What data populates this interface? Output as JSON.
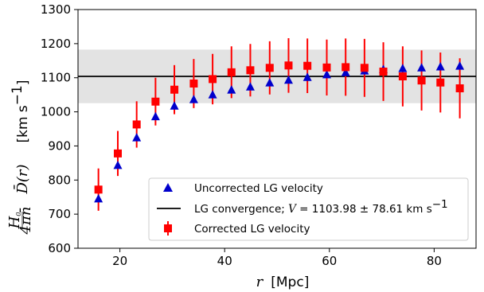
{
  "chart_data": {
    "type": "scatter",
    "title": "",
    "xlabel": "Mpc",
    "xlabel_var": "r",
    "ylabel": "H0/(4πn̄) D̄(r) [km s⁻¹]",
    "ylabel_unit": "[km s",
    "ylabel_unit_exp": "−1",
    "ylabel_unit_close": "]",
    "xlim": [
      12,
      88
    ],
    "ylim": [
      600,
      1300
    ],
    "xticks": [
      20,
      40,
      60,
      80
    ],
    "yticks": [
      600,
      700,
      800,
      900,
      1000,
      1100,
      1200,
      1300
    ],
    "grid": false,
    "legend_position": "lower-right",
    "band": {
      "center": 1103.98,
      "half_width": 78.61,
      "color": "#e3e3e3"
    },
    "series": [
      {
        "name": "Uncorrected LG velocity",
        "marker": "triangle",
        "color": "#0000cc",
        "x": [
          15.9,
          19.6,
          23.2,
          26.8,
          30.4,
          34.1,
          37.7,
          41.3,
          44.9,
          48.6,
          52.2,
          55.8,
          59.5,
          63.1,
          66.7,
          70.3,
          74.0,
          77.6,
          81.2,
          84.9
        ],
        "y": [
          745,
          843,
          924,
          986,
          1017,
          1036,
          1050,
          1064,
          1073,
          1085,
          1093,
          1101,
          1109,
          1115,
          1120,
          1124,
          1127,
          1129,
          1132,
          1134
        ]
      },
      {
        "name": "LG convergence",
        "legend_label": "LG convergence; ",
        "legend_math": "V",
        "legend_value": " = 1103.98 ± 78.61 km s",
        "legend_exp": "−1",
        "marker": "line",
        "color": "#000000",
        "y": 1103.98
      },
      {
        "name": "Corrected LG velocity",
        "marker": "square",
        "color": "#ff0000",
        "x": [
          15.9,
          19.6,
          23.2,
          26.8,
          30.4,
          34.1,
          37.7,
          41.3,
          44.9,
          48.6,
          52.2,
          55.8,
          59.5,
          63.1,
          66.7,
          70.3,
          74.0,
          77.6,
          81.2,
          84.9
        ],
        "y": [
          772,
          878,
          963,
          1030,
          1065,
          1083,
          1096,
          1116,
          1122,
          1129,
          1136,
          1135,
          1130,
          1131,
          1129,
          1118,
          1104,
          1092,
          1086,
          1069
        ],
        "err": [
          62,
          66,
          68,
          70,
          72,
          72,
          74,
          76,
          77,
          78,
          80,
          80,
          82,
          84,
          85,
          86,
          88,
          88,
          88,
          88
        ]
      }
    ]
  }
}
